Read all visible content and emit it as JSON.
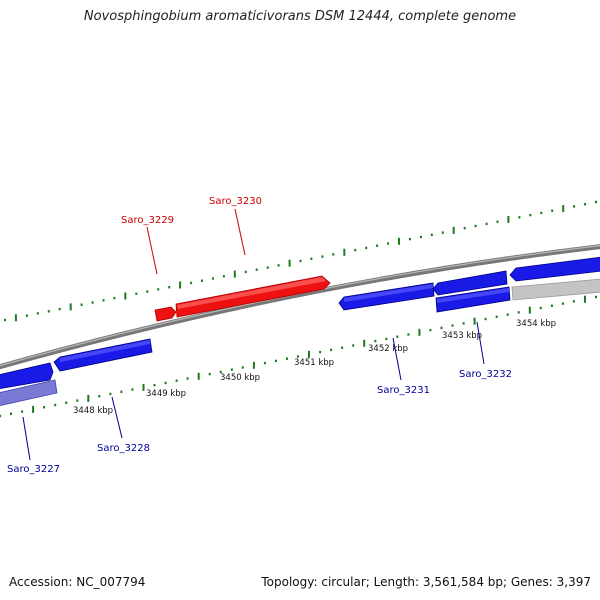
{
  "title": "Novosphingobium aromaticivorans DSM 12444, complete genome",
  "footer": {
    "accession": "Accession: NC_007794",
    "summary": "Topology: circular; Length: 3,561,584 bp; Genes: 3,397"
  },
  "colors": {
    "forward_gene": "#ee1111",
    "reverse_gene": "#1a1ae6",
    "faded_gene": "#7a7ad6",
    "grey_gene": "#c4c4c4",
    "backbone": "#808080",
    "ticks": "#1f7a1f",
    "label_forward": "#cc0000",
    "label_reverse": "#000099"
  },
  "scale_labels": [
    "3448 kbp",
    "3449 kbp",
    "3450 kbp",
    "3451 kbp",
    "3452 kbp",
    "3453 kbp",
    "3454 kbp"
  ],
  "gene_labels": [
    {
      "id": "Saro_3227",
      "strand": "reverse"
    },
    {
      "id": "Saro_3228",
      "strand": "reverse"
    },
    {
      "id": "Saro_3229",
      "strand": "forward"
    },
    {
      "id": "Saro_3230",
      "strand": "forward"
    },
    {
      "id": "Saro_3231",
      "strand": "reverse"
    },
    {
      "id": "Saro_3232",
      "strand": "reverse"
    }
  ]
}
